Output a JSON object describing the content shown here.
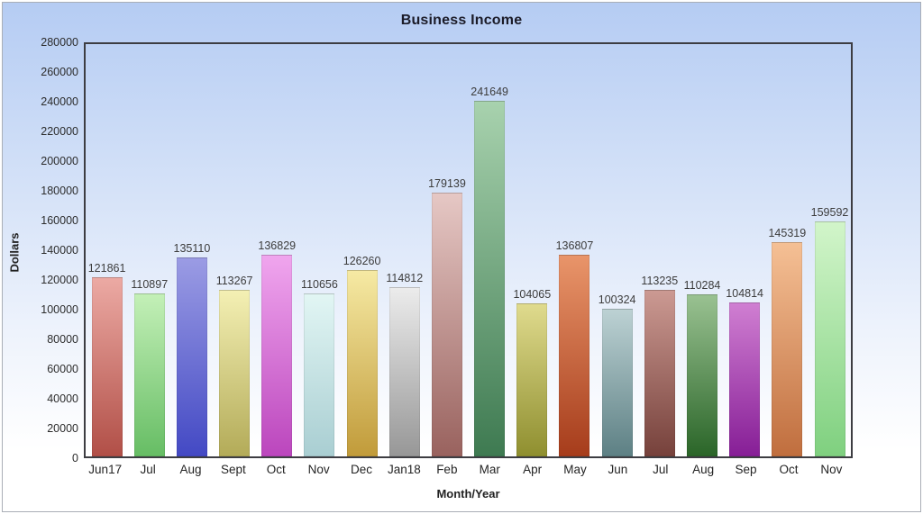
{
  "window": {
    "border_color": "#a9aeb6",
    "background_top_color": "#b5ccf3",
    "background_bottom_color": "#ffffff",
    "plot_border_color": "#3d3d42"
  },
  "chart_data": {
    "type": "bar",
    "title": "Business Income",
    "xlabel": "Month/Year",
    "ylabel": "Dollars",
    "ylim": [
      0,
      280000
    ],
    "ytick_step": 20000,
    "grid": false,
    "legend": "none",
    "value_labels_shown": true,
    "categories": [
      "Jun17",
      "Jul",
      "Aug",
      "Sept",
      "Oct",
      "Nov",
      "Dec",
      "Jan18",
      "Feb",
      "Mar",
      "Apr",
      "May",
      "Jun",
      "Jul",
      "Aug",
      "Sep",
      "Oct",
      "Nov"
    ],
    "values": [
      121861,
      110897,
      135110,
      113267,
      136829,
      110656,
      126260,
      114812,
      179139,
      241649,
      104065,
      136807,
      100324,
      113235,
      110284,
      104814,
      145319,
      159592
    ],
    "bar_gradients": [
      {
        "top": "#ecaaa4",
        "bottom": "#b14f47"
      },
      {
        "top": "#c4f0b8",
        "bottom": "#66bd64"
      },
      {
        "top": "#9b9ce4",
        "bottom": "#4349c4"
      },
      {
        "top": "#f4f0b4",
        "bottom": "#b3ab58"
      },
      {
        "top": "#f0a6ee",
        "bottom": "#bb46bd"
      },
      {
        "top": "#e2f6f4",
        "bottom": "#a9ced2"
      },
      {
        "top": "#f6eaa4",
        "bottom": "#c19b3a"
      },
      {
        "top": "#ececec",
        "bottom": "#979797"
      },
      {
        "top": "#e6c8c5",
        "bottom": "#99625e"
      },
      {
        "top": "#a8d2ae",
        "bottom": "#3e7a51"
      },
      {
        "top": "#e0db8e",
        "bottom": "#8f8f2f"
      },
      {
        "top": "#e9956a",
        "bottom": "#a63c1b"
      },
      {
        "top": "#bdd2d4",
        "bottom": "#5d8084"
      },
      {
        "top": "#cc9a93",
        "bottom": "#76413b"
      },
      {
        "top": "#9ac292",
        "bottom": "#2a6528"
      },
      {
        "top": "#d07fd2",
        "bottom": "#861e96"
      },
      {
        "top": "#f5c095",
        "bottom": "#c06e3e"
      },
      {
        "top": "#d2f5ca",
        "bottom": "#7fd07f"
      }
    ],
    "value_label_color": "#3c3c3c",
    "tick_label_color": "#2c2c2c"
  }
}
